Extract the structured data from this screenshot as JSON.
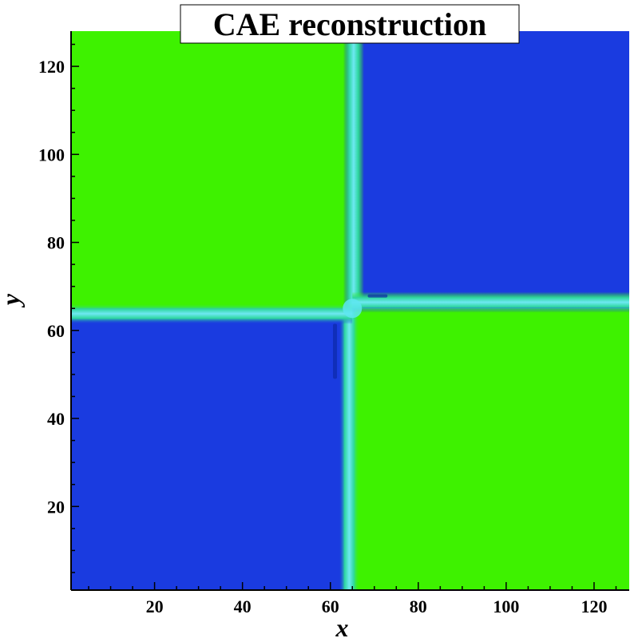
{
  "chart_data": {
    "type": "heatmap",
    "title": "CAE reconstruction",
    "xlabel": "x",
    "ylabel": "y",
    "xlim": [
      1,
      128
    ],
    "ylim": [
      1,
      128
    ],
    "x_ticks": [
      20,
      40,
      60,
      80,
      100,
      120
    ],
    "y_ticks": [
      20,
      40,
      60,
      80,
      100,
      120
    ],
    "colors": {
      "high": "#3ef200",
      "low": "#1a3be0",
      "interface_mid": "#2fd8a0",
      "interface_core": "#5ee6f0"
    },
    "regions": [
      {
        "name": "top-left",
        "x": [
          1,
          65
        ],
        "y": [
          65,
          128
        ],
        "level": "high"
      },
      {
        "name": "top-right",
        "x": [
          65,
          128
        ],
        "y": [
          65,
          128
        ],
        "level": "low"
      },
      {
        "name": "bottom-left",
        "x": [
          1,
          65
        ],
        "y": [
          1,
          65
        ],
        "level": "low"
      },
      {
        "name": "bottom-right",
        "x": [
          65,
          128
        ],
        "y": [
          1,
          65
        ],
        "level": "high"
      }
    ],
    "interfaces": {
      "vertical_x": 65,
      "horizontal_y": 65,
      "vertical_upper_x": 65.3,
      "vertical_lower_x": 64.3,
      "horizontal_left_y": 63.8,
      "horizontal_right_y": 66.4
    }
  }
}
